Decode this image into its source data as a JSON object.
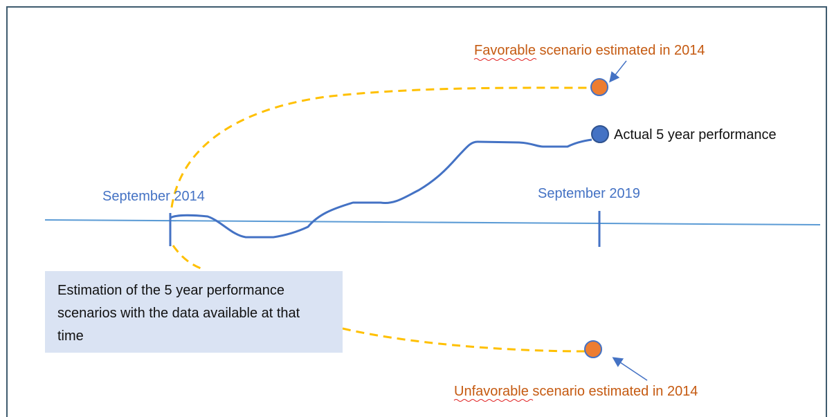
{
  "labels": {
    "favorable": "Favorable scenario estimated in 2014",
    "actual": "Actual 5 year performance",
    "start": "September 2014",
    "end": "September 2019",
    "note": "Estimation of the 5 year performance scenarios with the data available at that time",
    "unfavorable": "Unfavorable scenario estimated in 2014"
  }
}
